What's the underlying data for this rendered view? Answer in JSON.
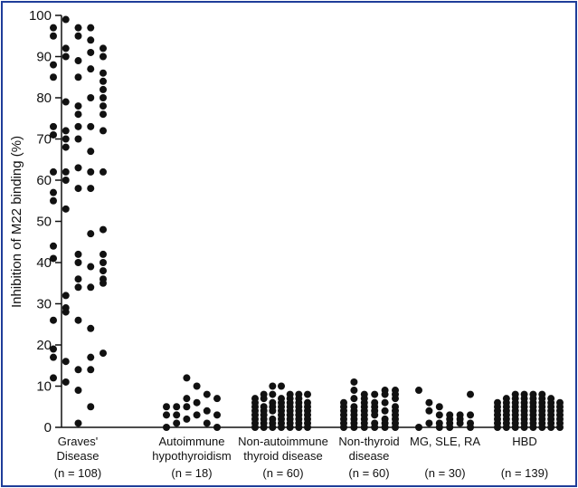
{
  "chart_data": {
    "type": "scatter",
    "title": "",
    "xlabel": "",
    "ylabel": "Inhibition of M22 binding (%)",
    "ylim": [
      0,
      100
    ],
    "yticks": [
      0,
      10,
      20,
      30,
      40,
      50,
      60,
      70,
      80,
      90,
      100
    ],
    "grid": false,
    "legend": "none",
    "colors": {
      "points": "#111111",
      "axis": "#111111",
      "frame": "#1f3d99"
    },
    "categories": [
      {
        "name_lines": [
          "Graves'",
          "Disease"
        ],
        "n_label": "(n = 108)"
      },
      {
        "name_lines": [
          "Autoimmune",
          "hypothyroidism"
        ],
        "n_label": "(n = 18)"
      },
      {
        "name_lines": [
          "Non-autoimmune",
          "thyroid disease"
        ],
        "n_label": "(n = 60)"
      },
      {
        "name_lines": [
          "Non-thyroid",
          "disease"
        ],
        "n_label": "(n = 60)"
      },
      {
        "name_lines": [
          "MG, SLE, RA"
        ],
        "n_label": "(n = 30)"
      },
      {
        "name_lines": [
          "HBD"
        ],
        "n_label": "(n = 139)"
      }
    ],
    "series": [
      {
        "name": "Graves' Disease",
        "columns": [
          [
            97,
            95,
            88,
            85,
            73,
            71,
            62,
            57,
            55,
            44,
            41,
            26,
            19,
            17,
            12
          ],
          [
            99,
            92,
            90,
            79,
            72,
            70,
            68,
            62,
            60,
            53,
            32,
            29,
            28,
            16,
            11
          ],
          [
            97,
            95,
            89,
            85,
            78,
            76,
            73,
            70,
            63,
            58,
            42,
            40,
            36,
            34,
            26,
            14,
            9,
            1
          ],
          [
            97,
            94,
            91,
            87,
            80,
            73,
            67,
            62,
            58,
            47,
            39,
            34,
            24,
            17,
            14,
            5
          ],
          [
            92,
            90,
            86,
            84,
            82,
            80,
            78,
            76,
            72,
            62,
            48,
            42,
            40,
            38,
            36,
            35,
            18
          ]
        ]
      },
      {
        "name": "Autoimmune hypothyroidism",
        "columns": [
          [
            5,
            3,
            0
          ],
          [
            5,
            3,
            1
          ],
          [
            12,
            7,
            5,
            2
          ],
          [
            10,
            6,
            3
          ],
          [
            8,
            4,
            1
          ],
          [
            7,
            3,
            0
          ]
        ]
      },
      {
        "name": "Non-autoimmune thyroid disease",
        "columns": [
          [
            7,
            6,
            5,
            4,
            3,
            2,
            1,
            0
          ],
          [
            8,
            7,
            5,
            4,
            3,
            2,
            1,
            0
          ],
          [
            10,
            8,
            6,
            5,
            4,
            2,
            1,
            0
          ],
          [
            10,
            7,
            6,
            5,
            4,
            3,
            2,
            1,
            0
          ],
          [
            8,
            7,
            6,
            5,
            4,
            3,
            2,
            1,
            0
          ],
          [
            8,
            7,
            6,
            5,
            4,
            3,
            2,
            1,
            0
          ],
          [
            8,
            6,
            5,
            4,
            3,
            2,
            1,
            0
          ]
        ]
      },
      {
        "name": "Non-thyroid disease",
        "columns": [
          [
            6,
            5,
            4,
            3,
            2,
            1,
            0
          ],
          [
            11,
            9,
            7,
            5,
            4,
            3,
            2,
            1,
            0
          ],
          [
            8,
            7,
            6,
            5,
            4,
            3,
            2,
            1,
            0
          ],
          [
            8,
            6,
            5,
            4,
            3,
            1,
            0
          ],
          [
            9,
            8,
            6,
            4,
            2,
            1,
            0
          ],
          [
            9,
            8,
            7,
            5,
            4,
            3,
            2,
            1,
            0
          ]
        ]
      },
      {
        "name": "MG, SLE, RA",
        "columns": [
          [
            9,
            0
          ],
          [
            6,
            4,
            1
          ],
          [
            5,
            3,
            1,
            0
          ],
          [
            3,
            2,
            1,
            0
          ],
          [
            3,
            2,
            1
          ],
          [
            8,
            3,
            1,
            0
          ]
        ]
      },
      {
        "name": "HBD",
        "columns": [
          [
            6,
            5,
            4,
            3,
            2,
            1,
            0
          ],
          [
            7,
            6,
            5,
            4,
            3,
            2,
            1,
            0
          ],
          [
            8,
            7,
            6,
            5,
            4,
            3,
            2,
            1,
            0
          ],
          [
            8,
            7,
            6,
            5,
            4,
            3,
            2,
            1,
            0
          ],
          [
            8,
            7,
            6,
            5,
            4,
            3,
            2,
            1,
            0
          ],
          [
            8,
            7,
            6,
            5,
            4,
            3,
            2,
            1,
            0
          ],
          [
            7,
            6,
            5,
            4,
            3,
            2,
            1,
            0
          ],
          [
            6,
            5,
            4,
            3,
            2,
            1,
            0
          ]
        ]
      }
    ]
  }
}
